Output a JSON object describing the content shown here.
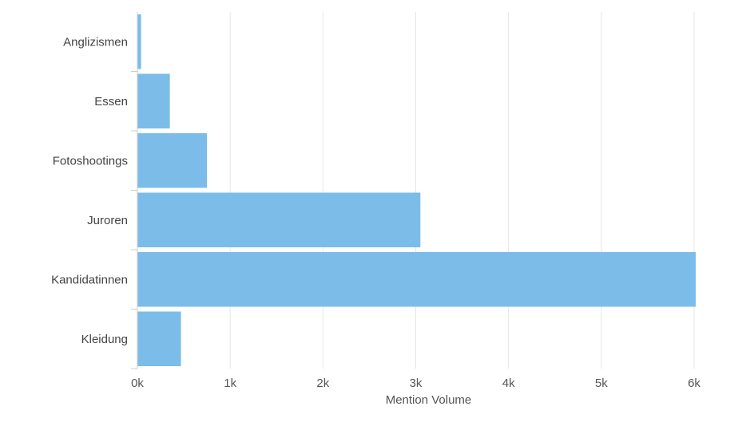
{
  "chart_data": {
    "type": "bar",
    "orientation": "horizontal",
    "categories": [
      "Anglizismen",
      "Essen",
      "Fotoshootings",
      "Juroren",
      "Kandidatinnen",
      "Kleidung"
    ],
    "values": [
      40,
      350,
      750,
      3050,
      6020,
      470
    ],
    "xlabel": "Mention Volume",
    "ylabel": "",
    "xlim": [
      0,
      6000
    ],
    "x_ticks": [
      0,
      1000,
      2000,
      3000,
      4000,
      5000,
      6000
    ],
    "x_tick_labels": [
      "0k",
      "1k",
      "2k",
      "3k",
      "4k",
      "5k",
      "6k"
    ],
    "grid": true,
    "bar_color": "#7bbde8"
  }
}
